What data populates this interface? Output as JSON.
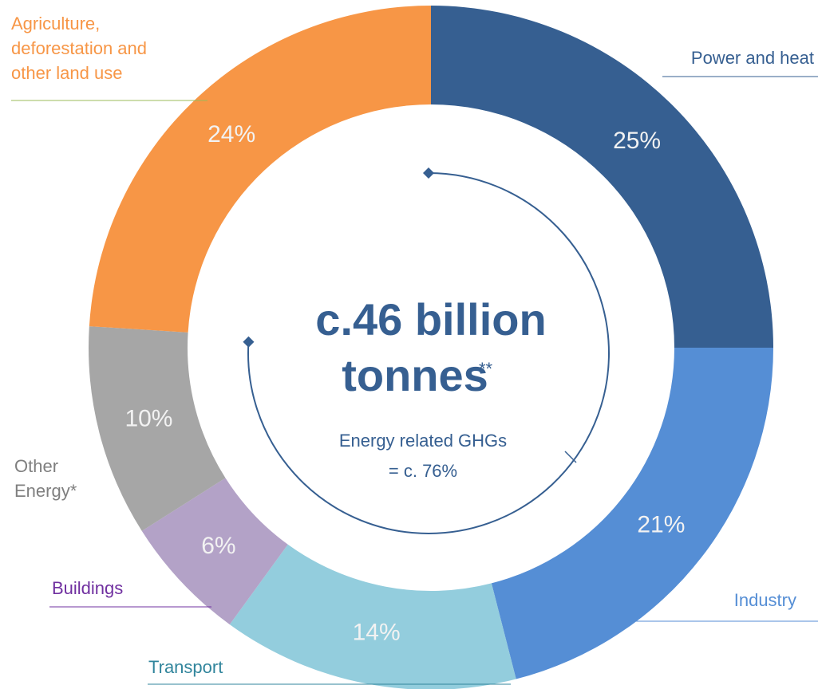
{
  "chart_data": {
    "type": "pie",
    "donut": true,
    "categories": [
      "Power and heat",
      "Industry",
      "Transport",
      "Buildings",
      "Other Energy*",
      "Agriculture, deforestation and other land use"
    ],
    "values": [
      25,
      21,
      14,
      6,
      10,
      24
    ],
    "value_labels": [
      "25%",
      "21%",
      "14%",
      "6%",
      "10%",
      "24%"
    ],
    "colors": [
      "#365f91",
      "#558ed5",
      "#93cddd",
      "#b3a2c7",
      "#a6a6a6",
      "#f79646"
    ],
    "label_colors": [
      "#365f91",
      "#558ed5",
      "#31859c",
      "#7030a0",
      "#7f7f7f",
      "#f79646"
    ],
    "center_title": "c.46 billion",
    "center_title_2": "tonnes",
    "center_note_marker": "**",
    "center_subtitle": "Energy related GHGs",
    "center_subtitle_2": "= c. 76%"
  }
}
